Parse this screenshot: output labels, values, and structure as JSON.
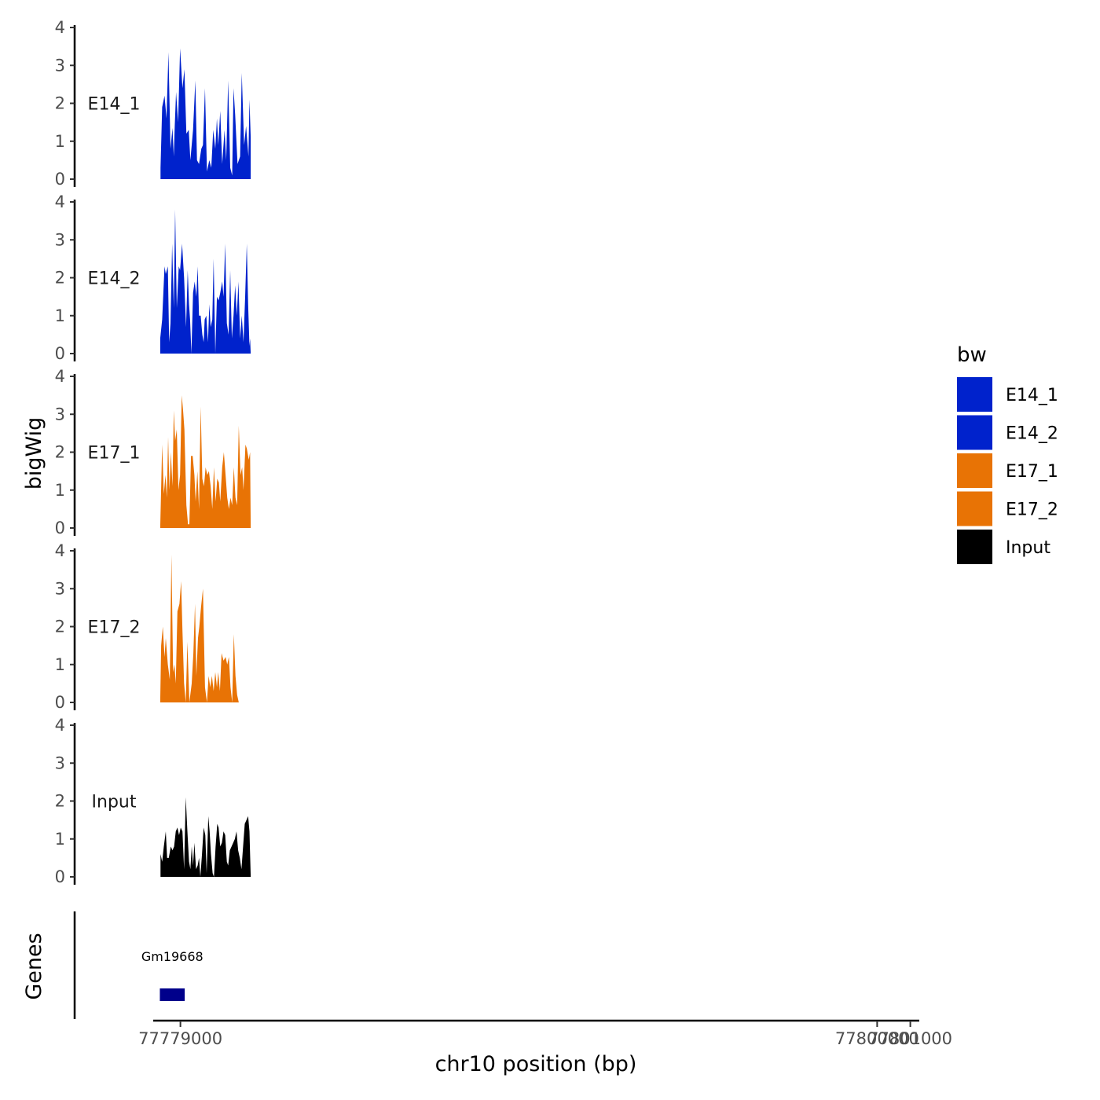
{
  "chart_data": {
    "type": "area",
    "title": "",
    "xlabel": "chr10 position (bp)",
    "ylabel": "bigWig",
    "genes_label": "Genes",
    "xlim": [
      77778180,
      77801270
    ],
    "x_ticks": [
      77779000,
      77800000,
      77801000
    ],
    "x_tick_labels": [
      "77779000",
      "77800000",
      "77801000"
    ],
    "ylim": [
      0,
      4
    ],
    "y_ticks": [
      0,
      1,
      2,
      3,
      4
    ],
    "y_tick_labels": [
      "0",
      "1",
      "2",
      "3",
      "4"
    ],
    "legend": {
      "title": "bw",
      "position": "right",
      "entries": [
        {
          "name": "E14_1",
          "color": "#0022cc"
        },
        {
          "name": "E14_2",
          "color": "#0022cc"
        },
        {
          "name": "E17_1",
          "color": "#e87305"
        },
        {
          "name": "E17_2",
          "color": "#e87305"
        },
        {
          "name": "Input",
          "color": "#000000"
        }
      ]
    },
    "series": [
      {
        "name": "E14_1",
        "color": "#0022cc",
        "x": [
          77778400,
          77778450,
          77778520,
          77778580,
          77778640,
          77778700,
          77778760,
          77778800,
          77778830,
          77778870,
          77778930,
          77778990,
          77779060,
          77779120,
          77779180,
          77779250,
          77779300,
          77779380,
          77779450,
          77779500,
          77779560,
          77779630,
          77779680,
          77779740,
          77779800,
          77779870,
          77779930,
          77779990,
          77780050,
          77780100,
          77780140,
          77780200,
          77780260,
          77780330,
          77780380,
          77780440,
          77780500,
          77780560,
          77780600,
          77780650,
          77780720,
          77780800,
          77780850,
          77780920,
          77780980,
          77781050,
          77781080,
          77781120
        ],
        "values": [
          0.3,
          1.9,
          2.2,
          1.6,
          3.35,
          0.8,
          1.35,
          0.6,
          1.4,
          2.3,
          1.5,
          3.45,
          2.4,
          2.9,
          1.2,
          1.3,
          0.5,
          1.3,
          2.6,
          0.5,
          0.4,
          0.8,
          0.9,
          2.4,
          0.2,
          0.5,
          0.3,
          1.3,
          0.8,
          1.6,
          0.9,
          1.8,
          0.4,
          1.3,
          0.5,
          2.6,
          0.3,
          0.1,
          2.4,
          1.7,
          0.4,
          0.6,
          2.8,
          0.9,
          1.4,
          0.6,
          2.1,
          1.1
        ]
      },
      {
        "name": "E14_2",
        "color": "#0022cc",
        "x": [
          77778390,
          77778450,
          77778520,
          77778560,
          77778620,
          77778660,
          77778700,
          77778750,
          77778800,
          77778840,
          77778890,
          77778950,
          77778990,
          77779050,
          77779110,
          77779170,
          77779220,
          77779260,
          77779290,
          77779330,
          77779380,
          77779430,
          77779480,
          77779520,
          77779560,
          77779610,
          77779660,
          77779700,
          77779730,
          77779780,
          77779830,
          77779870,
          77779910,
          77779960,
          77780000,
          77780050,
          77780100,
          77780150,
          77780200,
          77780260,
          77780300,
          77780350,
          77780400,
          77780450,
          77780500,
          77780550,
          77780600,
          77780650,
          77780700,
          77780750,
          77780800,
          77780850,
          77780900,
          77780950,
          77781000,
          77781040,
          77781080,
          77781100,
          77781120
        ],
        "values": [
          0.4,
          0.9,
          2.3,
          2.1,
          2.3,
          0.3,
          0.8,
          2.9,
          1.2,
          3.8,
          1.2,
          2.3,
          2.2,
          2.9,
          2.0,
          0.7,
          2.2,
          1.3,
          0.9,
          0.0,
          1.6,
          1.9,
          1.5,
          2.3,
          1.0,
          1.0,
          0.5,
          0.3,
          0.9,
          1.0,
          0.3,
          1.3,
          0.7,
          0.9,
          2.5,
          0.0,
          1.5,
          1.4,
          1.6,
          1.9,
          1.5,
          2.9,
          0.8,
          0.5,
          2.2,
          0.4,
          1.0,
          1.8,
          1.0,
          1.9,
          0.4,
          1.0,
          0.3,
          1.5,
          2.9,
          1.3,
          0.2,
          0.4,
          0.0
        ]
      },
      {
        "name": "E17_1",
        "color": "#e87305",
        "x": [
          77778390,
          77778450,
          77778500,
          77778550,
          77778590,
          77778630,
          77778670,
          77778710,
          77778760,
          77778800,
          77778840,
          77778890,
          77778940,
          77778990,
          77779040,
          77779080,
          77779120,
          77779180,
          77779230,
          77779270,
          77779320,
          77779370,
          77779420,
          77779460,
          77779510,
          77779560,
          77779610,
          77779660,
          77779710,
          77779760,
          77779810,
          77779860,
          77779910,
          77779960,
          77780010,
          77780060,
          77780110,
          77780160,
          77780200,
          77780260,
          77780310,
          77780360,
          77780410,
          77780460,
          77780510,
          77780560,
          77780610,
          77780660,
          77780710,
          77780760,
          77780810,
          77780860,
          77780900,
          77780960,
          77781000,
          77781060,
          77781100,
          77781120
        ],
        "values": [
          0.0,
          2.2,
          0.9,
          1.4,
          0.8,
          2.4,
          1.0,
          2.0,
          1.1,
          3.1,
          2.3,
          2.6,
          1.0,
          1.4,
          3.5,
          3.1,
          2.6,
          0.6,
          0.1,
          0.1,
          1.9,
          1.9,
          1.4,
          0.7,
          1.5,
          0.5,
          3.2,
          1.3,
          1.1,
          1.6,
          1.4,
          1.5,
          1.1,
          0.5,
          1.6,
          0.7,
          1.3,
          1.2,
          0.7,
          1.6,
          2.0,
          1.4,
          0.8,
          0.5,
          0.8,
          0.6,
          1.6,
          0.8,
          0.6,
          2.7,
          1.4,
          1.6,
          1.0,
          2.2,
          2.1,
          1.8,
          2.0,
          0.0
        ]
      },
      {
        "name": "E17_2",
        "color": "#e87305",
        "x": [
          77778390,
          77778420,
          77778470,
          77778520,
          77778560,
          77778620,
          77778680,
          77778730,
          77778780,
          77778820,
          77778860,
          77778910,
          77778970,
          77779020,
          77779060,
          77779110,
          77779160,
          77779210,
          77779270,
          77779340,
          77779390,
          77779440,
          77779480,
          77779530,
          77779570,
          77779620,
          77779680,
          77779740,
          77779800,
          77779850,
          77779900,
          77779950,
          77780000,
          77780050,
          77780100,
          77780140,
          77780190,
          77780240,
          77780300,
          77780360,
          77780410,
          77780460,
          77780510,
          77780560,
          77780610,
          77780660,
          77780710,
          77780760,
          77780810,
          77780860,
          77780900,
          77780960,
          77781000,
          77781050,
          77781090,
          77781120
        ],
        "values": [
          0.0,
          1.5,
          2.0,
          1.2,
          1.7,
          1.0,
          0.6,
          3.9,
          0.8,
          1.0,
          0.5,
          2.4,
          2.6,
          3.2,
          1.9,
          0.5,
          0.0,
          1.6,
          0.0,
          0.5,
          1.3,
          2.6,
          0.7,
          1.7,
          2.0,
          2.5,
          3.0,
          0.4,
          0.0,
          0.7,
          0.4,
          0.7,
          0.3,
          0.8,
          0.4,
          0.8,
          0.3,
          1.3,
          1.1,
          1.2,
          1.0,
          1.2,
          0.4,
          0.0,
          1.8,
          0.7,
          0.2,
          0.0,
          0.0,
          0.0,
          0.0,
          0.0,
          0.0,
          0.0,
          0.0,
          0.0
        ]
      },
      {
        "name": "Input",
        "color": "#000000",
        "x": [
          77778400,
          77778450,
          77778500,
          77778560,
          77778600,
          77778650,
          77778710,
          77778760,
          77778810,
          77778860,
          77778910,
          77778960,
          77779010,
          77779060,
          77779110,
          77779160,
          77779210,
          77779260,
          77779300,
          77779340,
          77779380,
          77779420,
          77779470,
          77779520,
          77779560,
          77779600,
          77779650,
          77779700,
          77779750,
          77779790,
          77779840,
          77779880,
          77779920,
          77779970,
          77780010,
          77780060,
          77780110,
          77780150,
          77780200,
          77780250,
          77780300,
          77780350,
          77780400,
          77780440,
          77780490,
          77780540,
          77780590,
          77780640,
          77780690,
          77780740,
          77780790,
          77780840,
          77780890,
          77780940,
          77780990,
          77781040,
          77781080,
          77781120
        ],
        "values": [
          0.6,
          0.4,
          0.8,
          1.2,
          0.5,
          0.5,
          0.8,
          0.7,
          0.8,
          1.2,
          1.3,
          1.1,
          1.3,
          1.2,
          0.2,
          2.1,
          1.2,
          0.4,
          0.2,
          0.8,
          0.3,
          0.9,
          0.2,
          0.3,
          0.5,
          0.0,
          0.6,
          1.3,
          1.1,
          0.1,
          1.6,
          1.2,
          0.6,
          0.1,
          0.0,
          0.8,
          1.4,
          1.3,
          0.8,
          0.9,
          1.2,
          1.1,
          0.4,
          0.3,
          0.7,
          0.8,
          0.9,
          1.0,
          1.2,
          0.7,
          0.5,
          0.2,
          0.8,
          1.4,
          1.5,
          1.6,
          1.2,
          0.0
        ]
      }
    ],
    "genes": [
      {
        "name": "Gm19668",
        "start": 77778380,
        "end": 77779130,
        "color": "#00008b"
      }
    ]
  }
}
